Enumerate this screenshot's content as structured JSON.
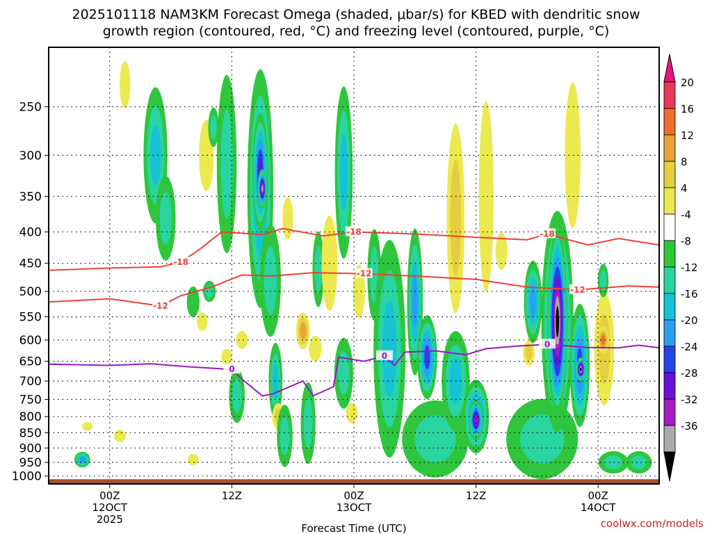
{
  "chart_data": {
    "type": "heatmap",
    "title_line1": "2025101118 NAM3KM Forecast Omega (shaded, μbar/s) for KBED with dendritic snow",
    "title_line2": "growth region (contoured, red, °C) and freezing level (contoured, purple, °C)",
    "xlabel": "Forecast Time (UTC)",
    "ylabel": "",
    "y_scale": "log-pressure",
    "ylim": [
      1030,
      200
    ],
    "y_ticks": [
      "250",
      "300",
      "350",
      "400",
      "450",
      "500",
      "550",
      "600",
      "650",
      "700",
      "750",
      "800",
      "850",
      "900",
      "950",
      "1000"
    ],
    "x_ticks": [
      {
        "hour": 6,
        "l1": "00Z",
        "l2": "12OCT",
        "l3": "2025"
      },
      {
        "hour": 18,
        "l1": "12Z",
        "l2": "",
        "l3": ""
      },
      {
        "hour": 30,
        "l1": "00Z",
        "l2": "13OCT",
        "l3": ""
      },
      {
        "hour": 42,
        "l1": "12Z",
        "l2": "",
        "l3": ""
      },
      {
        "hour": 54,
        "l1": "00Z",
        "l2": "14OCT",
        "l3": ""
      }
    ],
    "xlim": [
      0,
      60
    ],
    "grid": true,
    "colorbar": {
      "labels": [
        "20",
        "16",
        "12",
        "8",
        "4",
        "-4",
        "-8",
        "-12",
        "-16",
        "-20",
        "-24",
        "-28",
        "-32",
        "-36"
      ],
      "colors": [
        "#e83a58",
        "#ef6f2c",
        "#e8a33a",
        "#e6cf3f",
        "#ebe94f",
        "#ffffff",
        "#2fc63d",
        "#29d4a0",
        "#16c2d4",
        "#2a9ff2",
        "#2444ea",
        "#6b12d8",
        "#a61cc2",
        "#aaaaaa",
        "#000000"
      ],
      "top_arrow_color": "#e8157f",
      "bottom_arrow_color": "#000000"
    },
    "contours": [
      {
        "label": "-18",
        "color": "#ee4035",
        "points": [
          [
            0,
            462
          ],
          [
            6,
            458
          ],
          [
            11,
            456
          ],
          [
            13,
            448
          ],
          [
            15,
            425
          ],
          [
            17,
            400
          ],
          [
            21,
            404
          ],
          [
            23,
            395
          ],
          [
            27,
            406
          ],
          [
            30,
            400
          ],
          [
            36,
            403
          ],
          [
            42,
            408
          ],
          [
            47,
            412
          ],
          [
            49,
            403
          ],
          [
            53,
            420
          ],
          [
            56,
            410
          ],
          [
            60,
            420
          ]
        ]
      },
      {
        "label": "-12",
        "color": "#ee4035",
        "points": [
          [
            0,
            520
          ],
          [
            6,
            514
          ],
          [
            11,
            528
          ],
          [
            13,
            508
          ],
          [
            16,
            492
          ],
          [
            19,
            470
          ],
          [
            22,
            472
          ],
          [
            26,
            466
          ],
          [
            31,
            468
          ],
          [
            36,
            472
          ],
          [
            42,
            478
          ],
          [
            47,
            492
          ],
          [
            52,
            497
          ],
          [
            57,
            490
          ],
          [
            60,
            492
          ]
        ]
      },
      {
        "label": "0",
        "color": "#9a16c6",
        "points": [
          [
            0,
            657
          ],
          [
            6,
            660
          ],
          [
            10,
            656
          ],
          [
            14,
            664
          ],
          [
            18,
            670
          ],
          [
            19,
            695
          ],
          [
            21,
            740
          ],
          [
            22,
            735
          ],
          [
            25,
            700
          ],
          [
            26,
            740
          ],
          [
            28,
            715
          ],
          [
            28.5,
            640
          ],
          [
            31,
            650
          ],
          [
            33,
            637
          ],
          [
            34,
            660
          ],
          [
            35,
            628
          ],
          [
            38,
            625
          ],
          [
            41,
            634
          ],
          [
            43,
            620
          ],
          [
            46,
            614
          ],
          [
            49,
            610
          ],
          [
            53,
            617
          ],
          [
            56,
            618
          ],
          [
            58,
            612
          ],
          [
            60,
            618
          ]
        ]
      }
    ],
    "omega_cells": [
      {
        "hour": 3.3,
        "p": 940,
        "w": 1.0,
        "hp": 55,
        "v": -18
      },
      {
        "hour": 3.8,
        "p": 830,
        "w": 0.5,
        "hp": 20,
        "v": 6
      },
      {
        "hour": 7.0,
        "p": 860,
        "w": 0.6,
        "hp": 40,
        "v": 6
      },
      {
        "hour": 7.5,
        "p": 230,
        "w": 0.5,
        "hp": 40,
        "v": 5
      },
      {
        "hour": 10.5,
        "p": 300,
        "w": 1.8,
        "hp": 150,
        "v": -12
      },
      {
        "hour": 11.5,
        "p": 380,
        "w": 1.4,
        "hp": 120,
        "v": -8
      },
      {
        "hour": 14.2,
        "p": 520,
        "w": 0.7,
        "hp": 60,
        "v": -6
      },
      {
        "hour": 14.2,
        "p": 940,
        "w": 0.5,
        "hp": 40,
        "v": 6
      },
      {
        "hour": 15.1,
        "p": 560,
        "w": 0.5,
        "hp": 40,
        "v": 6
      },
      {
        "hour": 15.5,
        "p": 300,
        "w": 0.9,
        "hp": 80,
        "v": 5
      },
      {
        "hour": 15.8,
        "p": 500,
        "w": 0.7,
        "hp": 40,
        "v": -8
      },
      {
        "hour": 16.2,
        "p": 270,
        "w": 0.5,
        "hp": 40,
        "v": -10
      },
      {
        "hour": 17.5,
        "p": 310,
        "w": 1.4,
        "hp": 200,
        "v": -8
      },
      {
        "hour": 17.5,
        "p": 640,
        "w": 0.5,
        "hp": 40,
        "v": 5
      },
      {
        "hour": 18.5,
        "p": 740,
        "w": 1.0,
        "hp": 150,
        "v": -10
      },
      {
        "hour": 19.0,
        "p": 600,
        "w": 0.6,
        "hp": 40,
        "v": 6
      },
      {
        "hour": 20.8,
        "p": 340,
        "w": 2.0,
        "hp": 300,
        "v": -16
      },
      {
        "hour": 20.8,
        "p": 320,
        "w": 1.0,
        "hp": 140,
        "v": -24
      },
      {
        "hour": 21.0,
        "p": 340,
        "w": 0.4,
        "hp": 50,
        "v": -32
      },
      {
        "hour": 21.8,
        "p": 480,
        "w": 1.5,
        "hp": 200,
        "v": -10
      },
      {
        "hour": 22.3,
        "p": 700,
        "w": 0.8,
        "hp": 200,
        "v": -14
      },
      {
        "hour": 22.6,
        "p": 800,
        "w": 0.7,
        "hp": 80,
        "v": 8
      },
      {
        "hour": 23.2,
        "p": 860,
        "w": 1.0,
        "hp": 200,
        "v": -8
      },
      {
        "hour": 23.5,
        "p": 380,
        "w": 0.5,
        "hp": 60,
        "v": 5
      },
      {
        "hour": 25.0,
        "p": 580,
        "w": 0.8,
        "hp": 80,
        "v": 12
      },
      {
        "hour": 25.5,
        "p": 820,
        "w": 0.9,
        "hp": 250,
        "v": -8
      },
      {
        "hour": 26.5,
        "p": 460,
        "w": 0.6,
        "hp": 130,
        "v": -10
      },
      {
        "hour": 26.2,
        "p": 620,
        "w": 0.7,
        "hp": 60,
        "v": 5
      },
      {
        "hour": 27.6,
        "p": 450,
        "w": 1.0,
        "hp": 160,
        "v": 6
      },
      {
        "hour": 29.0,
        "p": 320,
        "w": 1.2,
        "hp": 200,
        "v": -12
      },
      {
        "hour": 29.0,
        "p": 680,
        "w": 1.3,
        "hp": 180,
        "v": -8
      },
      {
        "hour": 29.8,
        "p": 790,
        "w": 0.6,
        "hp": 60,
        "v": 6
      },
      {
        "hour": 30.5,
        "p": 500,
        "w": 0.6,
        "hp": 100,
        "v": 5
      },
      {
        "hour": 32.0,
        "p": 470,
        "w": 0.8,
        "hp": 160,
        "v": -8
      },
      {
        "hour": 33.5,
        "p": 620,
        "w": 2.6,
        "hp": 480,
        "v": -12
      },
      {
        "hour": 36.0,
        "p": 520,
        "w": 1.0,
        "hp": 280,
        "v": -16
      },
      {
        "hour": 37.2,
        "p": 640,
        "w": 1.4,
        "hp": 200,
        "v": -20
      },
      {
        "hour": 38.0,
        "p": 870,
        "w": 6.0,
        "hp": 250,
        "v": -10
      },
      {
        "hour": 40.0,
        "p": 700,
        "w": 2.2,
        "hp": 260,
        "v": -12
      },
      {
        "hour": 42.0,
        "p": 800,
        "w": 2.0,
        "hp": 220,
        "v": -20
      },
      {
        "hour": 42.0,
        "p": 810,
        "w": 0.9,
        "hp": 120,
        "v": -28
      },
      {
        "hour": 40.0,
        "p": 380,
        "w": 1.2,
        "hp": 260,
        "v": 8
      },
      {
        "hour": 43.0,
        "p": 350,
        "w": 0.9,
        "hp": 240,
        "v": 5
      },
      {
        "hour": 44.5,
        "p": 430,
        "w": 0.6,
        "hp": 60,
        "v": 5
      },
      {
        "hour": 47.2,
        "p": 630,
        "w": 0.6,
        "hp": 60,
        "v": 8
      },
      {
        "hour": 47.6,
        "p": 520,
        "w": 1.2,
        "hp": 160,
        "v": -16
      },
      {
        "hour": 48.5,
        "p": 870,
        "w": 6.5,
        "hp": 260,
        "v": -10
      },
      {
        "hour": 50.0,
        "p": 560,
        "w": 2.6,
        "hp": 440,
        "v": -20
      },
      {
        "hour": 50.0,
        "p": 560,
        "w": 1.4,
        "hp": 380,
        "v": -36
      },
      {
        "hour": 51.5,
        "p": 300,
        "w": 1.0,
        "hp": 160,
        "v": 5
      },
      {
        "hour": 52.2,
        "p": 660,
        "w": 1.4,
        "hp": 300,
        "v": -20
      },
      {
        "hour": 52.3,
        "p": 670,
        "w": 0.5,
        "hp": 60,
        "v": -36
      },
      {
        "hour": 54.6,
        "p": 620,
        "w": 1.4,
        "hp": 260,
        "v": 8
      },
      {
        "hour": 54.5,
        "p": 600,
        "w": 0.6,
        "hp": 60,
        "v": 16
      },
      {
        "hour": 54.5,
        "p": 480,
        "w": 0.5,
        "hp": 60,
        "v": -8
      },
      {
        "hour": 55.5,
        "p": 950,
        "w": 2.4,
        "hp": 80,
        "v": -8
      },
      {
        "hour": 58.0,
        "p": 950,
        "w": 2.0,
        "hp": 80,
        "v": -8
      }
    ]
  },
  "footer": {
    "xlabel": "Forecast Time (UTC)",
    "credit": "coolwx.com/models"
  }
}
